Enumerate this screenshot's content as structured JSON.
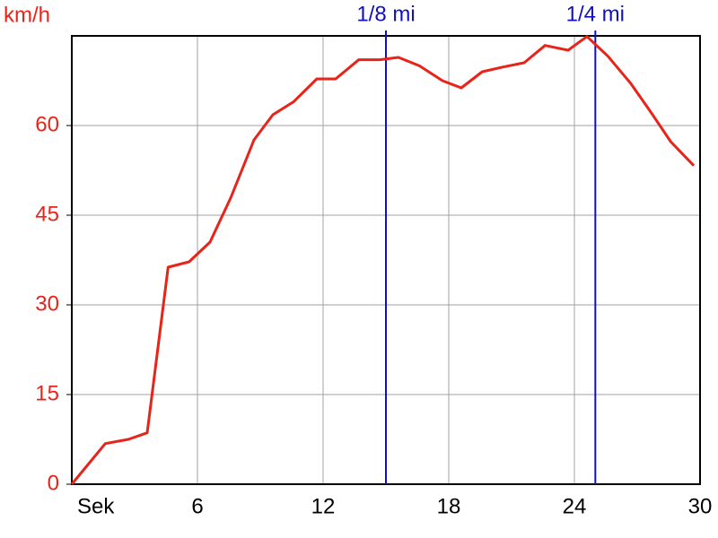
{
  "chart_data": {
    "type": "line",
    "y_label": "km/h",
    "x": [
      0,
      1.6,
      2.7,
      3.6,
      4.6,
      5.6,
      6.6,
      7.6,
      8.7,
      9.6,
      10.6,
      11.7,
      12.6,
      13.7,
      14.7,
      15.6,
      16.6,
      17.7,
      18.6,
      19.6,
      20.6,
      21.6,
      22.6,
      23.7,
      24.6,
      25.6,
      26.7,
      27.6,
      28.6,
      29.7
    ],
    "series": [
      {
        "name": "km/h",
        "color": "#e8231a",
        "values": [
          0,
          6.8,
          7.5,
          8.6,
          36.3,
          37.2,
          40.5,
          48,
          57.6,
          61.8,
          64,
          67.8,
          67.8,
          71,
          71,
          71.4,
          70,
          67.5,
          66.3,
          69,
          69.8,
          70.5,
          73.4,
          72.6,
          74.9,
          71.6,
          67,
          62.5,
          57.3,
          53.3
        ]
      }
    ],
    "xlim": [
      0,
      30
    ],
    "ylim": [
      0,
      75
    ],
    "xticks": [
      {
        "value": 0,
        "label": "Sek"
      },
      6,
      12,
      18,
      24,
      30
    ],
    "yticks": [
      0,
      15,
      30,
      45,
      60
    ],
    "grid": true,
    "markers": [
      {
        "label": "1/8 mi",
        "x": 15,
        "color": "#1010c0"
      },
      {
        "label": "1/4 mi",
        "x": 25,
        "color": "#1010c0"
      }
    ]
  }
}
